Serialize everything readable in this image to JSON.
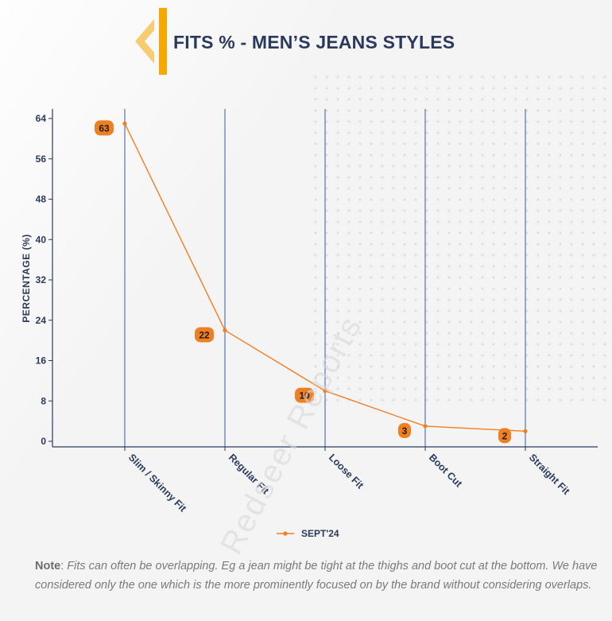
{
  "page": {
    "title": "FITS % - MEN’S JEANS STYLES",
    "accent_color": "#f5a800",
    "title_color": "#2b3a5c",
    "watermark": "Redseer Reports"
  },
  "note": {
    "label": "Note",
    "text": "Fits can often be overlapping. Eg a jean might be tight at the thighs and boot cut at the bottom. We have considered only the one which is the more prominently focused on by the brand without considering overlaps."
  },
  "chart_data": {
    "type": "line",
    "categories": [
      "Slim / Skinny Fit",
      "Regular Fit",
      "Loose Fit",
      "Boot Cut",
      "Straight Fit"
    ],
    "series": [
      {
        "name": "SEPT'24",
        "values": [
          63,
          22,
          10,
          3,
          2
        ],
        "color": "#f07f22"
      }
    ],
    "ylabel": "PERCENTAGE (%)",
    "xlabel": "",
    "ylim": [
      0,
      64
    ],
    "yticks": [
      0,
      8,
      16,
      24,
      32,
      40,
      48,
      56,
      64
    ],
    "vertical_gridlines": true,
    "gridline_color": "#3a5a9a",
    "legend_position": "bottom-center",
    "data_labels": true
  }
}
